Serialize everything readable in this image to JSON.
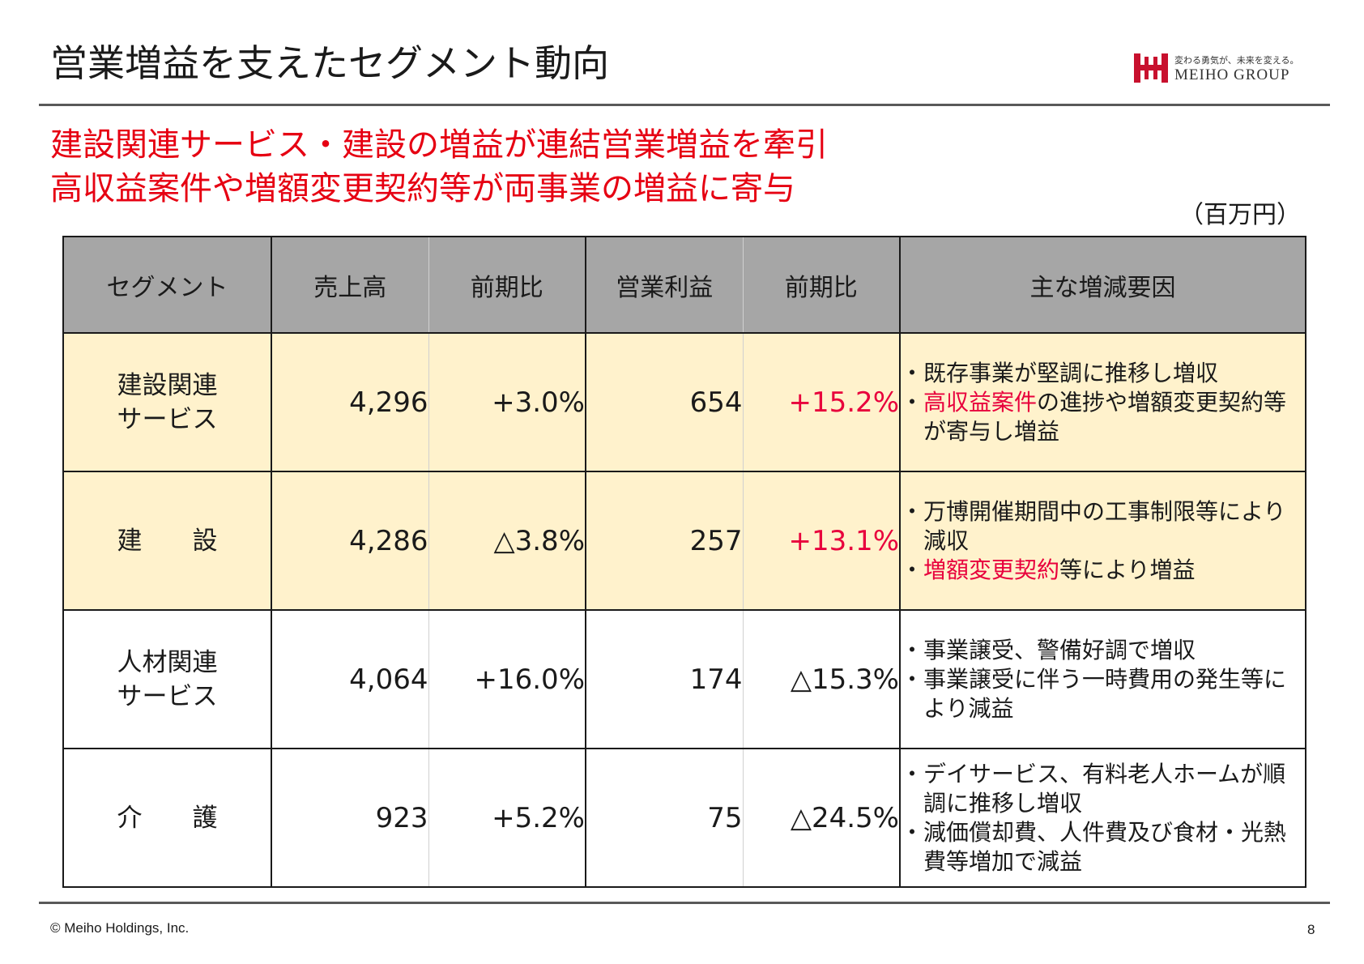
{
  "header": {
    "title": "営業増益を支えたセグメント動向",
    "logo": {
      "tagline": "変わる勇気が、未来を変える。",
      "name": "MEIHO GROUP",
      "brand_color": "#c8102e"
    }
  },
  "headline": {
    "line1": "建設関連サービス・建設の増益が連結営業増益を牽引",
    "line2": "高収益案件や増額変更契約等が両事業の増益に寄与"
  },
  "table": {
    "unit": "（百万円）",
    "columns": [
      "セグメント",
      "売上高",
      "前期比",
      "営業利益",
      "前期比",
      "主な増減要因"
    ],
    "rows": [
      {
        "segment_line1": "建設関連",
        "segment_line2": "サービス",
        "sales": "4,296",
        "sales_yoy": "+3.0%",
        "operating_profit": "654",
        "profit_yoy": "+15.2%",
        "factors": {
          "f1": "・既存事業が堅調に推移し増収",
          "f2_bullet": "・",
          "f2_highlight": "高収益案件",
          "f2_rest": "の進捗や増額変更契約等が寄与し増益"
        }
      },
      {
        "segment_line1": "建　　設",
        "sales": "4,286",
        "sales_yoy": "△3.8%",
        "operating_profit": "257",
        "profit_yoy": "+13.1%",
        "factors": {
          "f1": "・万博開催期間中の工事制限等により減収",
          "f2_bullet": "・",
          "f2_highlight": "増額変更契約",
          "f2_rest": "等により増益"
        }
      },
      {
        "segment_line1": "人材関連",
        "segment_line2": "サービス",
        "sales": "4,064",
        "sales_yoy": "+16.0%",
        "operating_profit": "174",
        "profit_yoy": "△15.3%",
        "factors": {
          "f1": "・事業譲受、警備好調で増収",
          "f2": "・事業譲受に伴う一時費用の発生等により減益"
        }
      },
      {
        "segment_line1": "介　　護",
        "sales": "923",
        "sales_yoy": "+5.2%",
        "operating_profit": "75",
        "profit_yoy": "△24.5%",
        "factors": {
          "f1": "・デイサービス、有料老人ホームが順調に推移し増収",
          "f2": "・減価償却費、人件費及び食材・光熱費等増加で減益"
        }
      }
    ]
  },
  "footer": {
    "copyright": "© Meiho Holdings, Inc.",
    "page": "8"
  }
}
